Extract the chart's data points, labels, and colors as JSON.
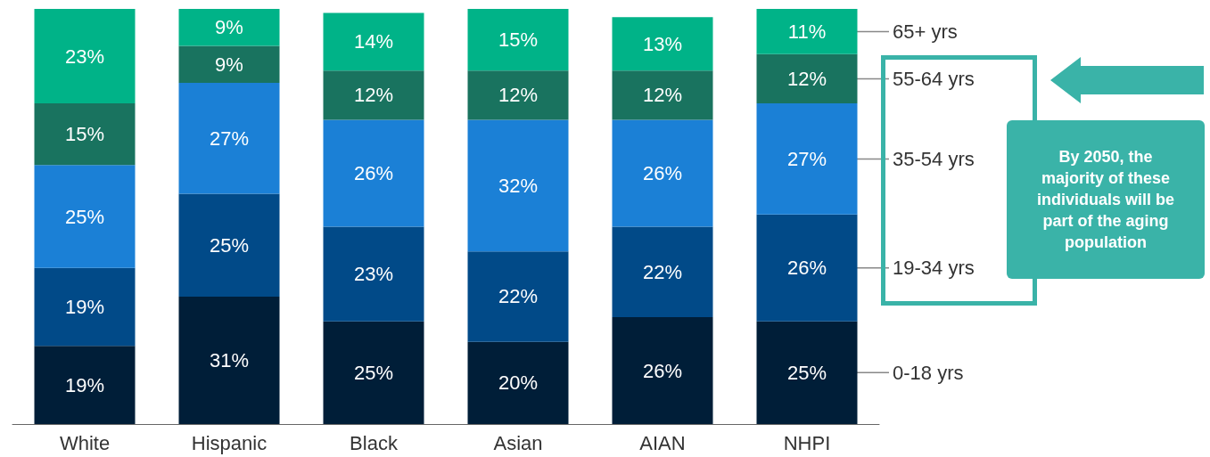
{
  "chart_data": {
    "type": "bar",
    "stacked": true,
    "categories": [
      "White",
      "Hispanic",
      "Black",
      "Asian",
      "AIAN",
      "NHPI"
    ],
    "series": [
      {
        "name": "0-18 yrs",
        "color": "#001e38",
        "values": [
          19,
          31,
          25,
          20,
          26,
          25
        ],
        "value_labels": [
          "19%",
          "31%",
          "25%",
          "20%",
          "26%",
          "25%"
        ]
      },
      {
        "name": "19-34 yrs",
        "color": "#014a88",
        "values": [
          19,
          25,
          23,
          22,
          22,
          26
        ],
        "value_labels": [
          "19%",
          "25%",
          "23%",
          "22%",
          "22%",
          "26%"
        ]
      },
      {
        "name": "35-54 yrs",
        "color": "#1b80d6",
        "values": [
          25,
          27,
          26,
          32,
          26,
          27
        ],
        "value_labels": [
          "25%",
          "27%",
          "26%",
          "32%",
          "26%",
          "27%"
        ]
      },
      {
        "name": "55-64 yrs",
        "color": "#19735f",
        "values": [
          15,
          9,
          12,
          12,
          12,
          12
        ],
        "value_labels": [
          "15%",
          "9%",
          "12%",
          "12%",
          "12%",
          "12%"
        ]
      },
      {
        "name": "65+ yrs",
        "color": "#00b388",
        "values": [
          23,
          9,
          14,
          15,
          13,
          11
        ],
        "value_labels": [
          "23%",
          "9%",
          "14%",
          "15%",
          "13%",
          "11%"
        ]
      }
    ],
    "annotations": [
      "By 2050, the majority of these individuals will be part of the aging population"
    ],
    "legend": false
  }
}
